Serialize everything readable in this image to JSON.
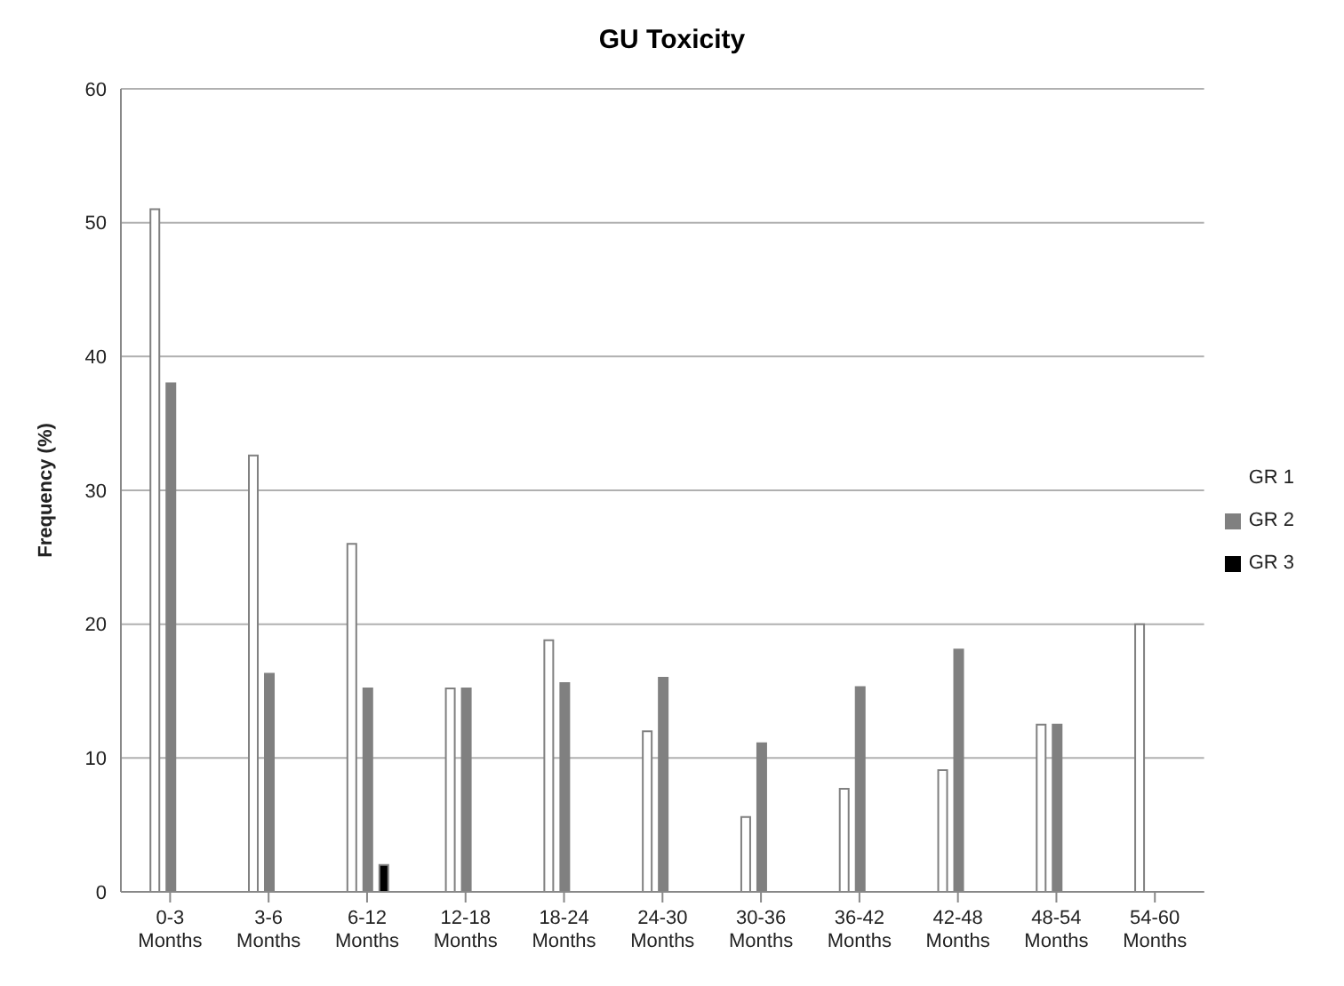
{
  "chart_data": {
    "type": "bar",
    "title": "GU Toxicity",
    "ylabel": "Frequency (%)",
    "categories": [
      "0-3 Months",
      "3-6 Months",
      "6-12 Months",
      "12-18 Months",
      "18-24 Months",
      "24-30 Months",
      "30-36 Months",
      "36-42 Months",
      "42-48 Months",
      "48-54 Months",
      "54-60 Months"
    ],
    "series": [
      {
        "name": "GR 1",
        "color": "#ffffff",
        "values": [
          51,
          32.6,
          26,
          15.2,
          18.8,
          12,
          5.6,
          7.7,
          9.1,
          12.5,
          20
        ]
      },
      {
        "name": "GR 2",
        "color": "#808080",
        "values": [
          38,
          16.3,
          15.2,
          15.2,
          15.6,
          16,
          11.1,
          15.3,
          18.1,
          12.5,
          null
        ]
      },
      {
        "name": "GR 3",
        "color": "#000000",
        "values": [
          null,
          null,
          2,
          null,
          null,
          null,
          null,
          null,
          null,
          null,
          null
        ]
      }
    ],
    "ylim": [
      0,
      60
    ],
    "yticks": [
      0,
      10,
      20,
      30,
      40,
      50,
      60
    ],
    "grid": "y",
    "legend": "right"
  }
}
